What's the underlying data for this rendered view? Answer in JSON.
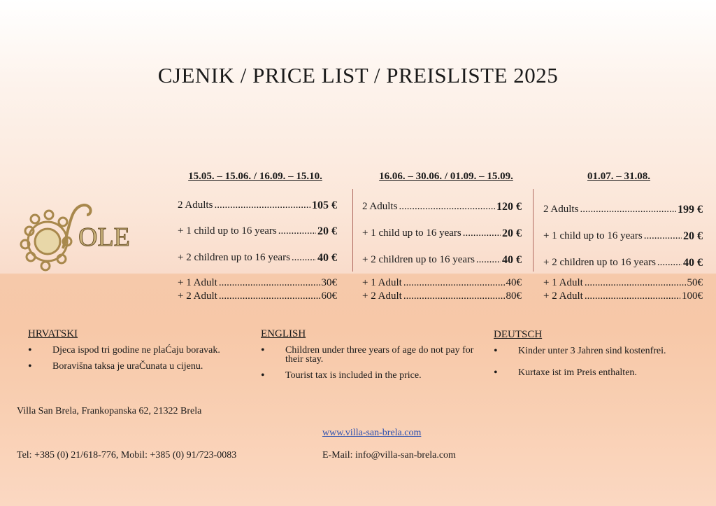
{
  "title": "CJENIK / PRICE LIST / PREISLISTE 2025",
  "logo": {
    "text": "SOLE",
    "colors": {
      "gold": "#b8975a",
      "dark": "#5a4020"
    }
  },
  "columns": [
    {
      "period": "15.05. – 15.06. / 16.09. – 15.10.",
      "rows": [
        {
          "label": "2 Adults",
          "price": "105 €"
        },
        {
          "label": "+ 1 child up to 16 years",
          "price": "20 €"
        },
        {
          "label": "+ 2 children up to 16 years",
          "price": "40 €"
        },
        {
          "label": "+ 1 Adult",
          "price": "30€"
        },
        {
          "label": "+ 2 Adult",
          "price": "60€"
        }
      ]
    },
    {
      "period": "16.06. – 30.06. / 01.09. – 15.09.",
      "rows": [
        {
          "label": "2 Adults",
          "price": "120 €"
        },
        {
          "label": "+ 1 child up to 16 years",
          "price": "20 €"
        },
        {
          "label": "+ 2 children up to 16 years",
          "price": "40 €"
        },
        {
          "label": "+ 1 Adult",
          "price": "40€"
        },
        {
          "label": "+ 2 Adult",
          "price": "80€"
        }
      ]
    },
    {
      "period": "01.07. – 31.08.",
      "rows": [
        {
          "label": "2 Adults",
          "price": "199 €"
        },
        {
          "label": "+ 1 child up to 16 years",
          "price": "20 €"
        },
        {
          "label": "+ 2 children up to 16 years",
          "price": "40 €"
        },
        {
          "label": "+ 1 Adult",
          "price": "50€"
        },
        {
          "label": "+ 2 Adult",
          "price": "100€"
        }
      ]
    }
  ],
  "notes": [
    {
      "heading": "HRVATSKI",
      "items": [
        "Djeca ispod tri godine ne plaĆaju boravak.",
        "Boravišna taksa je uraČunata u cijenu."
      ]
    },
    {
      "heading": "ENGLISH",
      "items": [
        "Children under three years of age do not pay for their stay.",
        "Tourist tax is included in the price."
      ]
    },
    {
      "heading": "DEUTSCH",
      "items": [
        "Kinder unter 3 Jahren sind kostenfrei.",
        "Kurtaxe ist im Preis enthalten."
      ]
    }
  ],
  "footer": {
    "address": "Villa San Brela, Frankopanska 62, 21322 Brela",
    "website": "www.villa-san-brela.com",
    "phone": "Tel: +385 (0) 21/618-776, Mobil: +385 (0) 91/723-0083",
    "email": "E-Mail: info@villa-san-brela.com"
  }
}
